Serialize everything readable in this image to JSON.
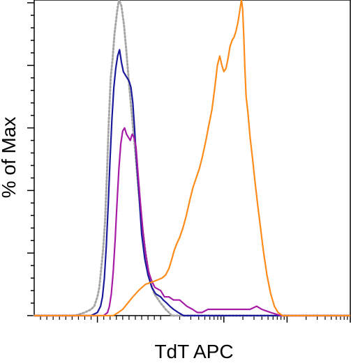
{
  "chart_data": {
    "type": "line",
    "title": "",
    "xlabel": "TdT APC",
    "ylabel": "% of Max",
    "xscale": "log",
    "xlim": [
      -100,
      100000
    ],
    "ylim": [
      0,
      100
    ],
    "tick_labels_shown": false,
    "grid": false,
    "legend": "none",
    "series": [
      {
        "color": "#a6a6a6",
        "style": "dotted",
        "points": [
          [
            -100,
            0
          ],
          [
            -35,
            0
          ],
          [
            -20,
            1
          ],
          [
            -10,
            2
          ],
          [
            -5,
            3
          ],
          [
            0,
            6
          ],
          [
            3,
            9
          ],
          [
            6,
            15
          ],
          [
            9,
            21
          ],
          [
            12,
            30
          ],
          [
            15,
            45
          ],
          [
            18,
            62
          ],
          [
            21,
            76
          ],
          [
            24,
            82
          ],
          [
            27,
            90
          ],
          [
            31,
            97
          ],
          [
            34,
            101
          ],
          [
            38,
            99
          ],
          [
            42,
            93
          ],
          [
            46,
            84
          ],
          [
            50,
            74
          ],
          [
            55,
            63
          ],
          [
            60,
            52
          ],
          [
            65,
            40
          ],
          [
            70,
            30
          ],
          [
            75,
            22
          ],
          [
            80,
            15
          ],
          [
            85,
            10
          ],
          [
            90,
            7
          ],
          [
            100,
            4
          ],
          [
            110,
            3
          ],
          [
            120,
            2
          ],
          [
            135,
            1
          ],
          [
            150,
            0
          ],
          [
            100000,
            0
          ]
        ]
      },
      {
        "color": "#1a1a9a",
        "style": "solid",
        "points": [
          [
            -100,
            0
          ],
          [
            -10,
            0
          ],
          [
            0,
            1
          ],
          [
            5,
            3
          ],
          [
            8,
            6
          ],
          [
            11,
            12
          ],
          [
            14,
            22
          ],
          [
            17,
            35
          ],
          [
            20,
            50
          ],
          [
            23,
            63
          ],
          [
            26,
            73
          ],
          [
            29,
            79
          ],
          [
            32,
            83
          ],
          [
            35,
            85
          ],
          [
            38,
            81
          ],
          [
            41,
            78
          ],
          [
            44,
            77
          ],
          [
            47,
            76
          ],
          [
            50,
            75
          ],
          [
            53,
            73
          ],
          [
            56,
            68
          ],
          [
            59,
            59
          ],
          [
            62,
            49
          ],
          [
            66,
            38
          ],
          [
            70,
            26
          ],
          [
            75,
            18
          ],
          [
            80,
            13
          ],
          [
            86,
            9
          ],
          [
            92,
            7
          ],
          [
            100,
            6
          ],
          [
            110,
            5
          ],
          [
            125,
            4
          ],
          [
            140,
            3
          ],
          [
            160,
            2
          ],
          [
            190,
            1
          ],
          [
            230,
            0
          ],
          [
            100000,
            0
          ]
        ]
      },
      {
        "color": "#a61ca6",
        "style": "solid",
        "points": [
          [
            -100,
            0
          ],
          [
            10,
            0
          ],
          [
            16,
            1
          ],
          [
            19,
            3
          ],
          [
            22,
            7
          ],
          [
            25,
            14
          ],
          [
            28,
            24
          ],
          [
            31,
            36
          ],
          [
            34,
            47
          ],
          [
            37,
            55
          ],
          [
            40,
            59
          ],
          [
            43,
            60
          ],
          [
            46,
            58
          ],
          [
            49,
            57
          ],
          [
            52,
            56
          ],
          [
            55,
            58
          ],
          [
            58,
            57
          ],
          [
            61,
            54
          ],
          [
            64,
            46
          ],
          [
            68,
            36
          ],
          [
            72,
            27
          ],
          [
            76,
            20
          ],
          [
            81,
            14
          ],
          [
            86,
            11
          ],
          [
            91,
            9
          ],
          [
            100,
            8
          ],
          [
            115,
            6
          ],
          [
            135,
            6
          ],
          [
            160,
            5
          ],
          [
            200,
            5
          ],
          [
            260,
            3
          ],
          [
            320,
            2
          ],
          [
            380,
            1
          ],
          [
            450,
            1
          ],
          [
            560,
            2
          ],
          [
            800,
            2
          ],
          [
            1300,
            2
          ],
          [
            2000,
            2
          ],
          [
            2600,
            2
          ],
          [
            3300,
            3
          ],
          [
            4000,
            2
          ],
          [
            5500,
            1
          ],
          [
            8000,
            0
          ],
          [
            100000,
            0
          ]
        ]
      },
      {
        "color": "#ff8c1a",
        "style": "solid",
        "points": [
          [
            -100,
            0
          ],
          [
            25,
            0
          ],
          [
            33,
            1
          ],
          [
            40,
            2
          ],
          [
            48,
            4
          ],
          [
            56,
            6
          ],
          [
            65,
            8
          ],
          [
            76,
            10
          ],
          [
            90,
            11
          ],
          [
            105,
            12
          ],
          [
            120,
            13
          ],
          [
            135,
            15
          ],
          [
            150,
            18
          ],
          [
            165,
            21
          ],
          [
            180,
            23
          ],
          [
            200,
            25
          ],
          [
            225,
            28
          ],
          [
            255,
            32
          ],
          [
            290,
            37
          ],
          [
            325,
            41
          ],
          [
            365,
            44
          ],
          [
            410,
            47
          ],
          [
            460,
            51
          ],
          [
            520,
            56
          ],
          [
            580,
            61
          ],
          [
            650,
            66
          ],
          [
            720,
            73
          ],
          [
            790,
            80
          ],
          [
            860,
            83
          ],
          [
            930,
            80
          ],
          [
            1000,
            78
          ],
          [
            1080,
            79
          ],
          [
            1160,
            82
          ],
          [
            1250,
            86
          ],
          [
            1350,
            88
          ],
          [
            1450,
            89
          ],
          [
            1560,
            91
          ],
          [
            1680,
            94
          ],
          [
            1800,
            98
          ],
          [
            1900,
            101
          ],
          [
            1980,
            98
          ],
          [
            2060,
            90
          ],
          [
            2150,
            79
          ],
          [
            2250,
            70
          ],
          [
            2400,
            65
          ],
          [
            2600,
            57
          ],
          [
            2850,
            50
          ],
          [
            3100,
            43
          ],
          [
            3400,
            36
          ],
          [
            3750,
            29
          ],
          [
            4200,
            21
          ],
          [
            4800,
            13
          ],
          [
            5500,
            7
          ],
          [
            6300,
            3
          ],
          [
            7200,
            1
          ],
          [
            8500,
            0
          ],
          [
            100000,
            0
          ]
        ]
      }
    ]
  }
}
